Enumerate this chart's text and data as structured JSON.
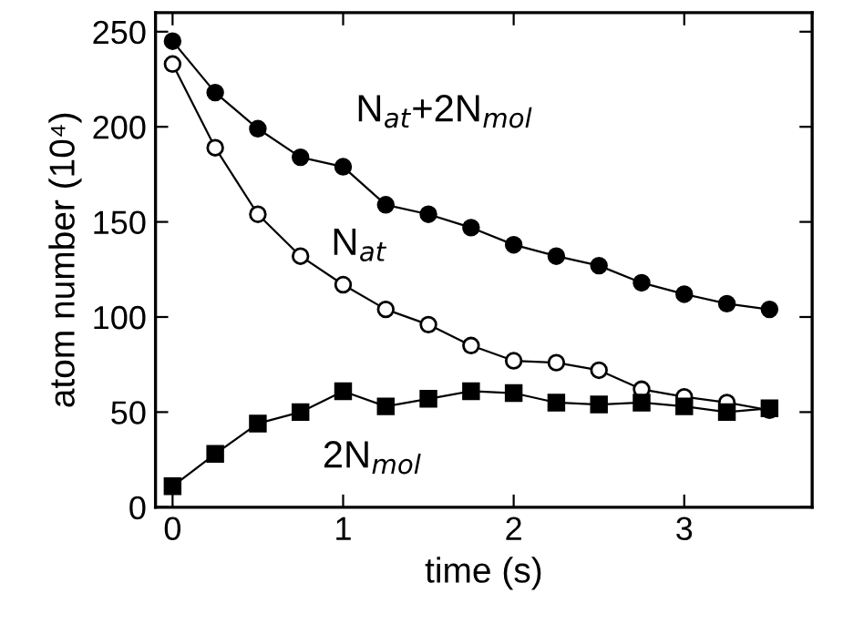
{
  "chart_data": {
    "type": "line",
    "xlabel": "time (s)",
    "ylabel": "atom number (10⁴)",
    "x": [
      0,
      0.25,
      0.5,
      0.75,
      1.0,
      1.25,
      1.5,
      1.75,
      2.0,
      2.25,
      2.5,
      2.75,
      3.0,
      3.25,
      3.5
    ],
    "series": [
      {
        "name": "N$_{at}$+2N$_{mol}$",
        "color": "#000000",
        "marker": "circle",
        "values": [
          245,
          218,
          199,
          184,
          179,
          159,
          154,
          147,
          138,
          132,
          127,
          118,
          112,
          107,
          104
        ]
      },
      {
        "name": "N$_{at}$",
        "color": "#000000",
        "marker": "circle",
        "values": [
          233,
          189,
          154,
          132,
          117,
          104,
          96,
          85,
          77,
          76,
          72,
          62,
          58,
          55,
          51
        ]
      },
      {
        "name": "2N$_{mol}$",
        "color": "#000000",
        "marker": "square",
        "values": [
          11,
          28,
          44,
          50,
          61,
          53,
          57,
          61,
          60,
          55,
          54,
          55,
          53,
          50,
          52
        ]
      }
    ],
    "xlim": [
      -0.1,
      3.75
    ],
    "ylim": [
      0,
      260
    ],
    "xticks": [
      0,
      1,
      2,
      3
    ],
    "yticks": [
      0,
      50,
      100,
      150,
      200,
      250
    ],
    "grid": false,
    "legend": false,
    "line_style": "solid"
  }
}
